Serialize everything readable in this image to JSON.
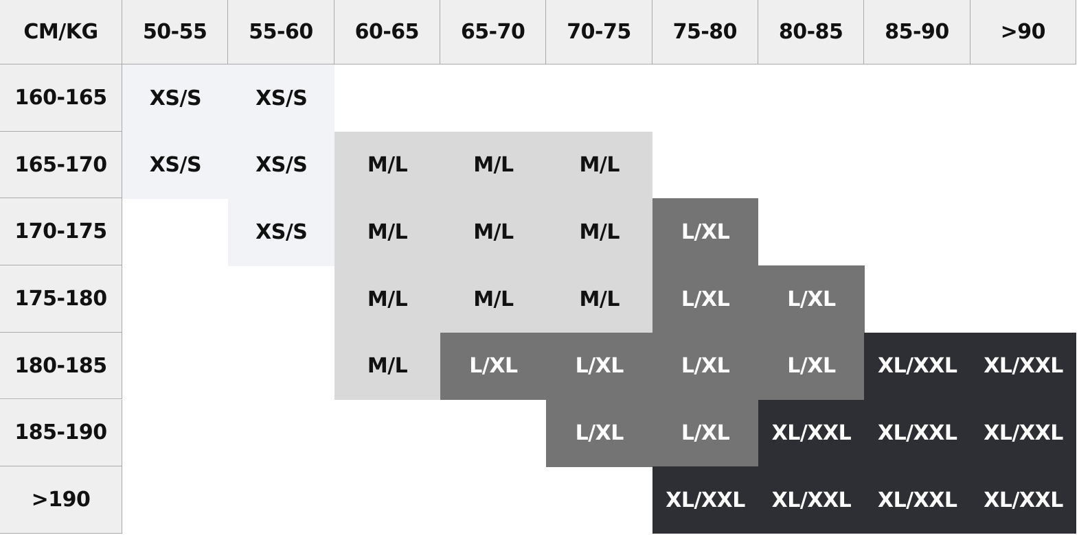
{
  "table": {
    "corner": "CM/KG",
    "columns": [
      "50-55",
      "55-60",
      "60-65",
      "65-70",
      "70-75",
      "75-80",
      "80-85",
      "85-90",
      ">90"
    ],
    "rows": [
      {
        "label": "160-165",
        "cells": [
          "XS/S",
          "XS/S",
          "",
          "",
          "",
          "",
          "",
          "",
          ""
        ]
      },
      {
        "label": "165-170",
        "cells": [
          "XS/S",
          "XS/S",
          "M/L",
          "M/L",
          "M/L",
          "",
          "",
          "",
          ""
        ]
      },
      {
        "label": "170-175",
        "cells": [
          "",
          "XS/S",
          "M/L",
          "M/L",
          "M/L",
          "L/XL",
          "",
          "",
          ""
        ]
      },
      {
        "label": "175-180",
        "cells": [
          "",
          "",
          "M/L",
          "M/L",
          "M/L",
          "L/XL",
          "L/XL",
          "",
          ""
        ]
      },
      {
        "label": "180-185",
        "cells": [
          "",
          "",
          "M/L",
          "L/XL",
          "L/XL",
          "L/XL",
          "L/XL",
          "XL/XXL",
          "XL/XXL"
        ]
      },
      {
        "label": "185-190",
        "cells": [
          "",
          "",
          "",
          "",
          "L/XL",
          "L/XL",
          "XL/XXL",
          "XL/XXL",
          "XL/XXL"
        ]
      },
      {
        "label": ">190",
        "cells": [
          "",
          "",
          "",
          "",
          "",
          "XL/XXL",
          "XL/XXL",
          "XL/XXL",
          "XL/XXL"
        ]
      }
    ]
  },
  "size_colors": {
    "XS/S": {
      "bg": "#f2f3f7",
      "fg": "#111111"
    },
    "M/L": {
      "bg": "#d9d9d9",
      "fg": "#111111"
    },
    "L/XL": {
      "bg": "#747474",
      "fg": "#ffffff"
    },
    "XL/XXL": {
      "bg": "#2e2f34",
      "fg": "#ffffff"
    }
  },
  "header_color": "#efefef"
}
